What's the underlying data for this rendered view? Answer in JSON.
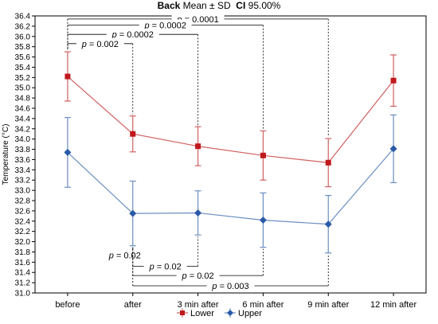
{
  "chart_data": {
    "type": "line",
    "title_bold": "Back",
    "title_stat": "Mean ± SD",
    "title_ci_bold": "CI",
    "title_ci": "95.00%",
    "ylabel": "Temperature (°C)",
    "xlabel": "",
    "ylim": [
      31.0,
      36.4
    ],
    "ytick_step": 0.2,
    "yticks": [
      "31.0",
      "31.2",
      "31.4",
      "31.6",
      "31.8",
      "32.0",
      "32.2",
      "32.4",
      "32.6",
      "32.8",
      "33.0",
      "33.2",
      "33.4",
      "33.6",
      "33.8",
      "34.0",
      "34.2",
      "34.4",
      "34.6",
      "34.8",
      "35.0",
      "35.2",
      "35.4",
      "35.6",
      "35.8",
      "36.0",
      "36.2",
      "36.4"
    ],
    "categories": [
      "before",
      "after",
      "3 min after",
      "6 min after",
      "9 min after",
      "12 min after"
    ],
    "series": [
      {
        "name": "Lower",
        "color": "#c0181c",
        "line_color": "#d06060",
        "marker": "square",
        "values": [
          35.22,
          34.1,
          33.86,
          33.68,
          33.54,
          35.14
        ],
        "sd": [
          0.48,
          0.35,
          0.38,
          0.48,
          0.47,
          0.5
        ]
      },
      {
        "name": "Upper",
        "color": "#2a5aa8",
        "line_color": "#6a8fc0",
        "marker": "diamond",
        "values": [
          33.74,
          32.55,
          32.56,
          32.42,
          32.34,
          33.81
        ],
        "sd": [
          0.68,
          0.63,
          0.43,
          0.53,
          0.56,
          0.66
        ]
      }
    ],
    "annotations": [
      {
        "label_italic": "p",
        "label_rest": " = 0.0001",
        "from": 0,
        "to": 4,
        "level": 36.34
      },
      {
        "label_italic": "p",
        "label_rest": " = 0.0002",
        "from": 0,
        "to": 3,
        "level": 36.22
      },
      {
        "label_italic": "p",
        "label_rest": " = 0.0002",
        "from": 0,
        "to": 2,
        "level": 36.04
      },
      {
        "label_italic": "p",
        "label_rest": " = 0.002",
        "from": 0,
        "to": 1,
        "level": 35.86
      },
      {
        "label_italic": "p",
        "label_rest": " = 0.02",
        "from": 1,
        "to": 1,
        "level": 31.74
      },
      {
        "label_italic": "p",
        "label_rest": " = 0.02",
        "from": 1,
        "to": 2,
        "level": 31.52
      },
      {
        "label_italic": "p",
        "label_rest": " = 0.02",
        "from": 1,
        "to": 3,
        "level": 31.34
      },
      {
        "label_italic": "p",
        "label_rest": " = 0.003",
        "from": 1,
        "to": 4,
        "level": 31.14
      }
    ],
    "grid": false,
    "legend_position": "bottom-center"
  }
}
